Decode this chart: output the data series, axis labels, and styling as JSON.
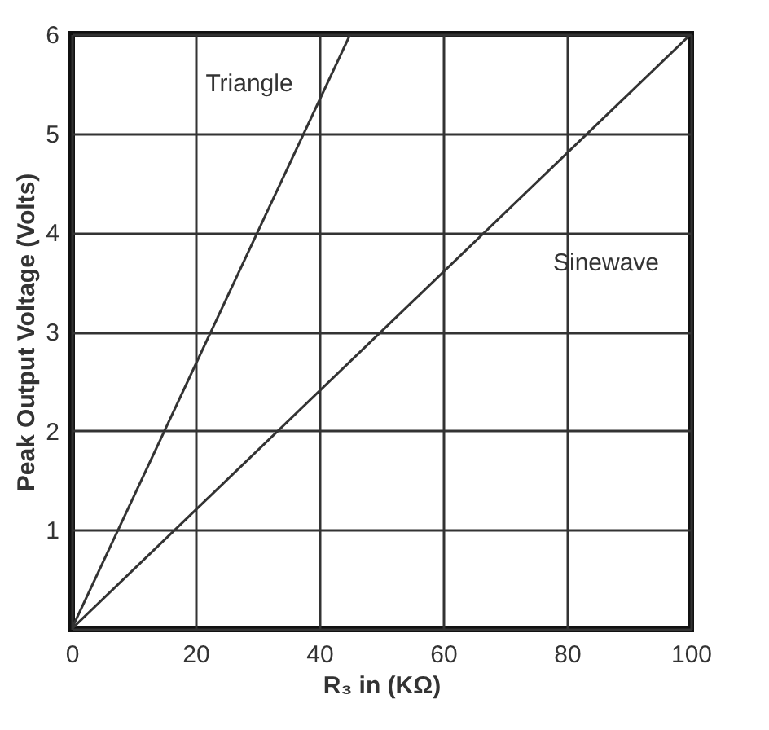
{
  "chart_data": {
    "type": "line",
    "xlabel": "R₃ in (KΩ)",
    "ylabel": "Peak Output Voltage (Volts)",
    "xlim": [
      0,
      100
    ],
    "ylim": [
      0,
      6
    ],
    "xticks": [
      0,
      20,
      40,
      60,
      80,
      100
    ],
    "yticks": [
      {
        "value": 0,
        "label": null
      },
      1,
      2,
      3,
      4,
      5,
      6
    ],
    "grid": true,
    "legend": false,
    "line_style": "solid",
    "series": [
      {
        "name": "Triangle",
        "color": "#333333",
        "x": [
          0,
          45
        ],
        "values": [
          0,
          6
        ]
      },
      {
        "name": "Sinewave",
        "color": "#333333",
        "x": [
          0,
          100
        ],
        "values": [
          0,
          6
        ]
      }
    ]
  }
}
